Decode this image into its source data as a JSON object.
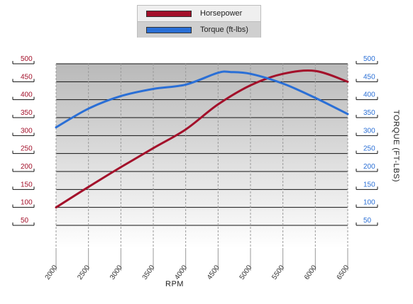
{
  "chart_data": {
    "type": "line",
    "xlabel": "RPM",
    "ylabel_right": "TORQUE (FT-LBS)",
    "x": [
      2000,
      2500,
      3000,
      3500,
      4000,
      4500,
      5000,
      5500,
      6000,
      6500
    ],
    "xticks": [
      "2000",
      "2500",
      "3000",
      "3500",
      "4000",
      "4500",
      "5000",
      "5500",
      "6000",
      "6500"
    ],
    "xlim": [
      2000,
      6500
    ],
    "ylim": [
      50,
      500
    ],
    "yticks_left": [
      "500",
      "450",
      "400",
      "350",
      "300",
      "250",
      "200",
      "150",
      "100",
      "50"
    ],
    "yticks_right": [
      "500",
      "450",
      "400",
      "350",
      "300",
      "250",
      "200",
      "150",
      "100",
      "50"
    ],
    "series": [
      {
        "name": "Horsepower",
        "color": "#a3102a",
        "axis": "left",
        "x": [
          2000,
          2500,
          3000,
          3500,
          4000,
          4500,
          5000,
          5500,
          6000,
          6500
        ],
        "values": [
          100,
          157,
          212,
          265,
          317,
          387,
          440,
          472,
          480,
          450
        ]
      },
      {
        "name": "Torque (ft-lbs)",
        "color": "#2a6fd6",
        "axis": "right",
        "x": [
          2000,
          2500,
          3000,
          3500,
          4000,
          4500,
          4700,
          5000,
          5500,
          6000,
          6500
        ],
        "values": [
          323,
          375,
          410,
          430,
          442,
          475,
          477,
          472,
          445,
          405,
          360
        ]
      }
    ]
  }
}
